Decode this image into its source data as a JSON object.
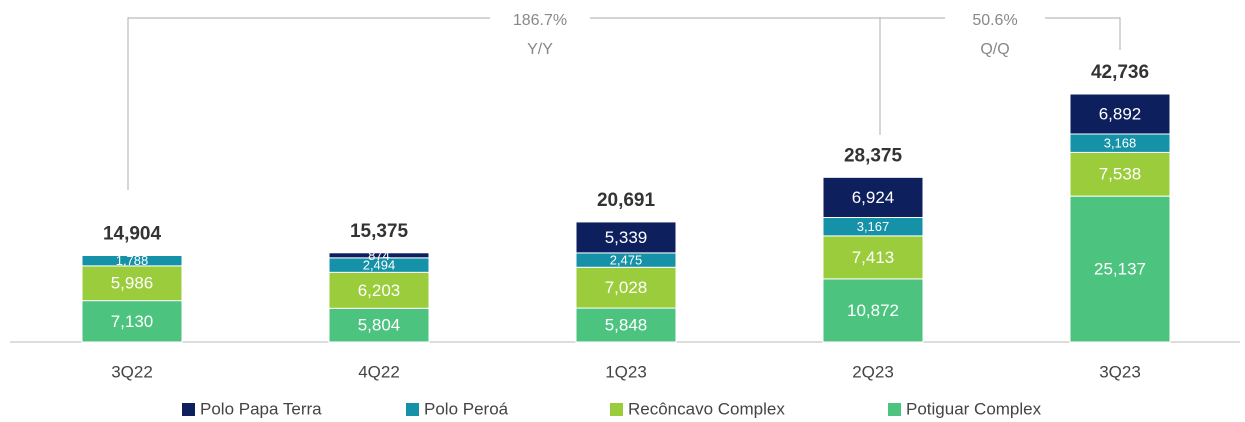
{
  "chart_data": {
    "type": "stacked_bar",
    "categories": [
      "3Q22",
      "4Q22",
      "1Q23",
      "2Q23",
      "3Q23"
    ],
    "series": [
      {
        "name": "Potiguar Complex",
        "color": "#4cc47f",
        "values": [
          7130,
          5804,
          5848,
          10872,
          25137
        ],
        "value_labels": [
          "7,130",
          "5,804",
          "5,848",
          "10,872",
          "25,137"
        ]
      },
      {
        "name": "Recôncavo Complex",
        "color": "#9bcc3c",
        "values": [
          5986,
          6203,
          7028,
          7413,
          7538
        ],
        "value_labels": [
          "5,986",
          "6,203",
          "7,028",
          "7,413",
          "7,538"
        ]
      },
      {
        "name": "Polo Peroá",
        "color": "#1591a8",
        "values": [
          1788,
          2494,
          2475,
          3167,
          3168
        ],
        "value_labels": [
          "1,788",
          "2,494",
          "2,475",
          "3,167",
          "3,168"
        ]
      },
      {
        "name": "Polo Papa Terra",
        "color": "#0d1f5c",
        "values": [
          null,
          874,
          5339,
          6924,
          6892
        ],
        "value_labels": [
          null,
          "874",
          "5,339",
          "6,924",
          "6,892"
        ]
      }
    ],
    "totals": {
      "values": [
        14904,
        15375,
        20691,
        28375,
        42736
      ],
      "value_labels": [
        "14,904",
        "15,375",
        "20,691",
        "28,375",
        "42,736"
      ]
    },
    "annotations": [
      {
        "value": "186.7%",
        "label": "Y/Y"
      },
      {
        "value": "50.6%",
        "label": "Q/Q"
      }
    ],
    "legend_order": [
      3,
      2,
      1,
      0
    ]
  }
}
